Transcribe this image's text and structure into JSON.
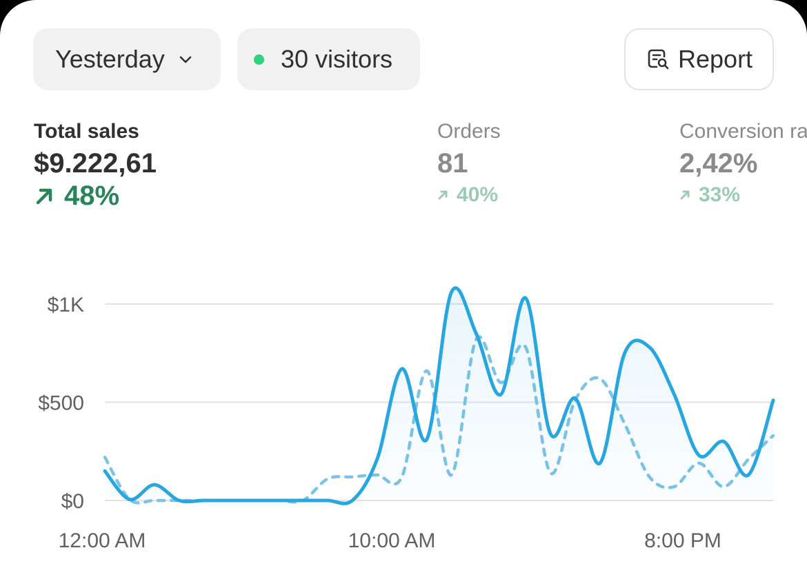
{
  "controls": {
    "date_range": "Yesterday",
    "visitors": "30 visitors",
    "report": "Report"
  },
  "metrics": [
    {
      "label": "Total sales",
      "value": "$9.222,61",
      "change": "48%"
    },
    {
      "label": "Orders",
      "value": "81",
      "change": "40%"
    },
    {
      "label": "Conversion rate",
      "value": "2,42%",
      "change": "33%"
    }
  ],
  "colors": {
    "primary_series": "#27a6df",
    "comparison_series": "#7cc3e5",
    "positive": "#29845a",
    "visitors_dot": "#2fd27d"
  },
  "chart_data": {
    "type": "line",
    "y_ticks": [
      "$0",
      "$500",
      "$1K"
    ],
    "x_ticks": [
      "12:00 AM",
      "10:00 AM",
      "8:00 PM"
    ],
    "ylim": [
      0,
      1000
    ],
    "grid": true,
    "series": [
      {
        "style": "solid",
        "values": [
          150,
          5,
          80,
          0,
          0,
          0,
          0,
          0,
          0,
          0,
          0,
          210,
          670,
          310,
          1060,
          850,
          540,
          1030,
          340,
          520,
          190,
          750,
          780,
          540,
          230,
          300,
          130,
          510
        ]
      },
      {
        "style": "dashed",
        "values": [
          220,
          5,
          0,
          0,
          0,
          0,
          0,
          0,
          0,
          110,
          120,
          130,
          120,
          660,
          130,
          820,
          600,
          780,
          140,
          510,
          620,
          390,
          120,
          70,
          190,
          70,
          210,
          330
        ]
      }
    ]
  }
}
